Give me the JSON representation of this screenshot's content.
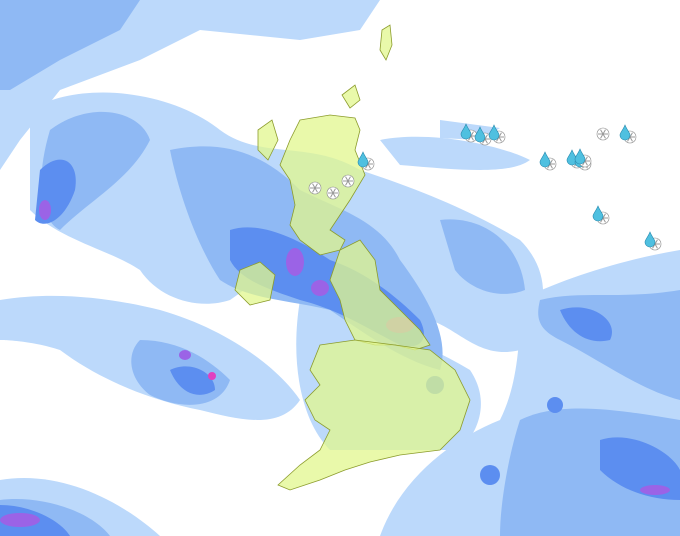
{
  "map": {
    "colors": {
      "background": "#ffffff",
      "precip_light": "#bcd9fb",
      "precip_moderate": "#8fb9f4",
      "precip_heavy": "#5c8ef0",
      "precip_very_heavy": "#9b63e6",
      "precip_extreme": "#e040c0",
      "land": "#e2f78e",
      "land_border": "#8c9c2c"
    },
    "markers": [
      {
        "type": "sleet-icon"
      },
      {
        "type": "sleet-icon"
      },
      {
        "type": "sleet-icon"
      },
      {
        "type": "sleet-icon"
      },
      {
        "type": "snow-icon"
      },
      {
        "type": "snow-icon"
      },
      {
        "type": "snow-icon"
      },
      {
        "type": "sleet-icon"
      },
      {
        "type": "sleet-icon"
      },
      {
        "type": "sleet-icon"
      },
      {
        "type": "sleet-icon"
      },
      {
        "type": "snow-icon"
      },
      {
        "type": "sleet-icon"
      },
      {
        "type": "sleet-icon"
      },
      {
        "type": "sleet-icon"
      }
    ]
  }
}
